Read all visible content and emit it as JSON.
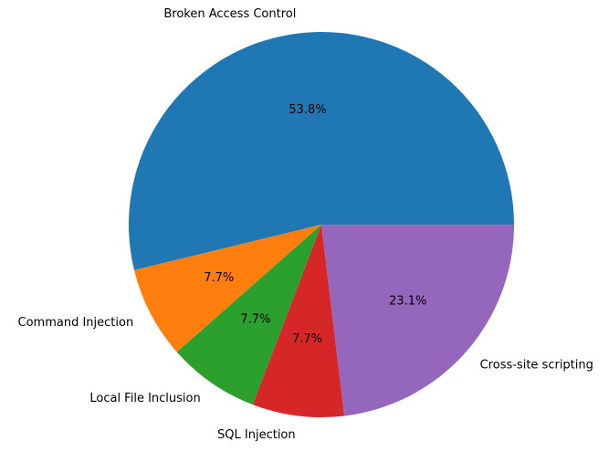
{
  "chart_data": {
    "type": "pie",
    "title": "",
    "start_angle_deg": 0,
    "direction": "counterclockwise",
    "slices": [
      {
        "label": "Broken Access Control",
        "value": 53.8,
        "pct_label": "53.8%",
        "color": "#1f77b4"
      },
      {
        "label": "Command Injection",
        "value": 7.7,
        "pct_label": "7.7%",
        "color": "#ff7f0e"
      },
      {
        "label": "Local File Inclusion",
        "value": 7.7,
        "pct_label": "7.7%",
        "color": "#2ca02c"
      },
      {
        "label": "SQL Injection",
        "value": 7.7,
        "pct_label": "7.7%",
        "color": "#d62728"
      },
      {
        "label": "Cross-site scripting",
        "value": 23.1,
        "pct_label": "23.1%",
        "color": "#9467bd"
      }
    ]
  }
}
